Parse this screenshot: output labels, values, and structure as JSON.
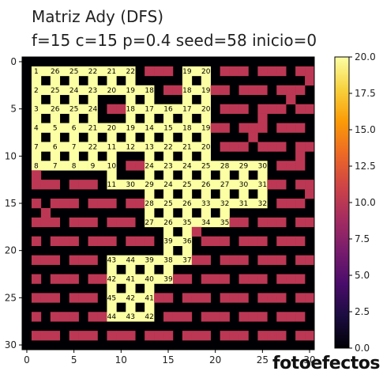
{
  "title_line1": "Matriz Ady (DFS)",
  "title_line2": "f=15 c=15 p=0.4 seed=58 inicio=0",
  "watermark": "fotoefectos",
  "chart_data": {
    "type": "heatmap",
    "colormap": "inferno",
    "vmin": 0,
    "vmax": 20,
    "xlim": [
      -0.5,
      30.5
    ],
    "ylim": [
      30.5,
      -0.5
    ],
    "xticks": [
      "0",
      "5",
      "10",
      "15",
      "20",
      "25",
      "30"
    ],
    "yticks": [
      "0",
      "5",
      "10",
      "15",
      "20",
      "25",
      "30"
    ],
    "colorbar_ticks": [
      "0.0",
      "2.5",
      "5.0",
      "7.5",
      "10.0",
      "12.5",
      "15.0",
      "17.5",
      "20.0"
    ],
    "rows": [
      "0000000000000000000000000000000",
      "0W0M0M0M0M0M0M00000W0M0000000MM",
      "000000000000000000000000000000M",
      "0M0M0M0M0M0000000000000000000M0",
      "0000000000000000000000000000M00",
      "0W0M0M0M00000000000000000000000",
      "0000000000000000000000000M00000",
      "0M0M0M0M0M0M0M0M0M0000000000000",
      "000000000000000000000000M000000",
      "0M0M0M0M0M0M0M0M0M0M0000000M000",
      "00000000000000000000000000000M0",
      "0W0M0M00000000000000000000000M0",
      "0M00000000000000000000000000000",
      "0000000000000000M00000000000000",
      "00000000000000000000000M000000M",
      "0000000000000000000000000000000",
      "00M0000000000000000000000000000",
      "0000000000000000000000000000000",
      "000000000000000000M000000000000",
      "0000000000000000000000000000000",
      "0000000000000000000000000000000",
      "0000000000000000000000000000000",
      "0000000000000000000000000000000",
      "0000000000000000000000000000000",
      "0000000000000000000000000000000",
      "0000000000000000000000000000000",
      "0000000000000000000000000000000",
      "0000000000000000000000000000000",
      "0000000000000000000000000000000",
      "0000000000000000000000000000000",
      "0000000000000000000000000000000"
    ],
    "labels": [
      {
        "r": 1,
        "c": 1,
        "t": "1"
      },
      {
        "r": 1,
        "c": 3,
        "t": "26"
      },
      {
        "r": 1,
        "c": 5,
        "t": "25"
      },
      {
        "r": 1,
        "c": 7,
        "t": "22"
      },
      {
        "r": 1,
        "c": 9,
        "t": "21"
      },
      {
        "r": 1,
        "c": 11,
        "t": "22"
      },
      {
        "r": 1,
        "c": 17,
        "t": "19"
      },
      {
        "r": 1,
        "c": 19,
        "t": "20"
      },
      {
        "r": 3,
        "c": 1,
        "t": "2"
      },
      {
        "r": 3,
        "c": 3,
        "t": "25"
      },
      {
        "r": 3,
        "c": 5,
        "t": "24"
      },
      {
        "r": 3,
        "c": 7,
        "t": "23"
      },
      {
        "r": 3,
        "c": 9,
        "t": "20"
      },
      {
        "r": 3,
        "c": 11,
        "t": "19"
      },
      {
        "r": 3,
        "c": 13,
        "t": "18"
      },
      {
        "r": 3,
        "c": 17,
        "t": "18"
      },
      {
        "r": 3,
        "c": 19,
        "t": "19"
      },
      {
        "r": 5,
        "c": 1,
        "t": "3"
      },
      {
        "r": 5,
        "c": 3,
        "t": "26"
      },
      {
        "r": 5,
        "c": 5,
        "t": "25"
      },
      {
        "r": 5,
        "c": 7,
        "t": "24"
      },
      {
        "r": 5,
        "c": 11,
        "t": "18"
      },
      {
        "r": 5,
        "c": 13,
        "t": "17"
      },
      {
        "r": 5,
        "c": 15,
        "t": "16"
      },
      {
        "r": 5,
        "c": 17,
        "t": "17"
      },
      {
        "r": 5,
        "c": 19,
        "t": "20"
      },
      {
        "r": 7,
        "c": 1,
        "t": "4"
      },
      {
        "r": 7,
        "c": 3,
        "t": "5"
      },
      {
        "r": 7,
        "c": 5,
        "t": "6"
      },
      {
        "r": 7,
        "c": 7,
        "t": "21"
      },
      {
        "r": 7,
        "c": 9,
        "t": "20"
      },
      {
        "r": 7,
        "c": 11,
        "t": "19"
      },
      {
        "r": 7,
        "c": 13,
        "t": "14"
      },
      {
        "r": 7,
        "c": 15,
        "t": "15"
      },
      {
        "r": 7,
        "c": 17,
        "t": "18"
      },
      {
        "r": 7,
        "c": 19,
        "t": "19"
      },
      {
        "r": 9,
        "c": 1,
        "t": "7"
      },
      {
        "r": 9,
        "c": 3,
        "t": "6"
      },
      {
        "r": 9,
        "c": 5,
        "t": "7"
      },
      {
        "r": 9,
        "c": 7,
        "t": "22"
      },
      {
        "r": 9,
        "c": 9,
        "t": "11"
      },
      {
        "r": 9,
        "c": 11,
        "t": "12"
      },
      {
        "r": 9,
        "c": 13,
        "t": "13"
      },
      {
        "r": 9,
        "c": 15,
        "t": "22"
      },
      {
        "r": 9,
        "c": 17,
        "t": "21"
      },
      {
        "r": 9,
        "c": 19,
        "t": "20"
      },
      {
        "r": 11,
        "c": 1,
        "t": "8"
      },
      {
        "r": 11,
        "c": 3,
        "t": "7"
      },
      {
        "r": 11,
        "c": 5,
        "t": "8"
      },
      {
        "r": 11,
        "c": 7,
        "t": "9"
      },
      {
        "r": 11,
        "c": 9,
        "t": "10"
      },
      {
        "r": 11,
        "c": 13,
        "t": "24"
      },
      {
        "r": 11,
        "c": 15,
        "t": "23"
      },
      {
        "r": 11,
        "c": 17,
        "t": "24"
      },
      {
        "r": 11,
        "c": 19,
        "t": "25"
      },
      {
        "r": 11,
        "c": 21,
        "t": "28"
      },
      {
        "r": 11,
        "c": 23,
        "t": "29"
      },
      {
        "r": 11,
        "c": 25,
        "t": "30"
      },
      {
        "r": 13,
        "c": 9,
        "t": "11"
      },
      {
        "r": 13,
        "c": 11,
        "t": "30"
      },
      {
        "r": 13,
        "c": 13,
        "t": "29"
      },
      {
        "r": 13,
        "c": 15,
        "t": "24"
      },
      {
        "r": 13,
        "c": 17,
        "t": "25"
      },
      {
        "r": 13,
        "c": 19,
        "t": "26"
      },
      {
        "r": 13,
        "c": 21,
        "t": "27"
      },
      {
        "r": 13,
        "c": 23,
        "t": "30"
      },
      {
        "r": 13,
        "c": 25,
        "t": "31"
      },
      {
        "r": 15,
        "c": 13,
        "t": "28"
      },
      {
        "r": 15,
        "c": 15,
        "t": "25"
      },
      {
        "r": 15,
        "c": 17,
        "t": "26"
      },
      {
        "r": 15,
        "c": 19,
        "t": "33"
      },
      {
        "r": 15,
        "c": 21,
        "t": "32"
      },
      {
        "r": 15,
        "c": 23,
        "t": "31"
      },
      {
        "r": 15,
        "c": 25,
        "t": "32"
      },
      {
        "r": 17,
        "c": 13,
        "t": "27"
      },
      {
        "r": 17,
        "c": 15,
        "t": "26"
      },
      {
        "r": 17,
        "c": 17,
        "t": "35"
      },
      {
        "r": 17,
        "c": 19,
        "t": "34"
      },
      {
        "r": 17,
        "c": 21,
        "t": "35"
      },
      {
        "r": 19,
        "c": 15,
        "t": "39"
      },
      {
        "r": 19,
        "c": 17,
        "t": "36"
      },
      {
        "r": 21,
        "c": 9,
        "t": "43"
      },
      {
        "r": 21,
        "c": 11,
        "t": "44"
      },
      {
        "r": 21,
        "c": 13,
        "t": "39"
      },
      {
        "r": 21,
        "c": 15,
        "t": "38"
      },
      {
        "r": 21,
        "c": 17,
        "t": "37"
      },
      {
        "r": 23,
        "c": 9,
        "t": "42"
      },
      {
        "r": 23,
        "c": 11,
        "t": "41"
      },
      {
        "r": 23,
        "c": 13,
        "t": "40"
      },
      {
        "r": 23,
        "c": 15,
        "t": "39"
      },
      {
        "r": 25,
        "c": 9,
        "t": "45"
      },
      {
        "r": 25,
        "c": 11,
        "t": "42"
      },
      {
        "r": 25,
        "c": 13,
        "t": "41"
      },
      {
        "r": 27,
        "c": 9,
        "t": "44"
      },
      {
        "r": 27,
        "c": 11,
        "t": "43"
      },
      {
        "r": 27,
        "c": 13,
        "t": "42"
      }
    ],
    "colors": {
      "wall": "#000004",
      "path": "#fcffa4",
      "mark": "#bc3754"
    }
  }
}
